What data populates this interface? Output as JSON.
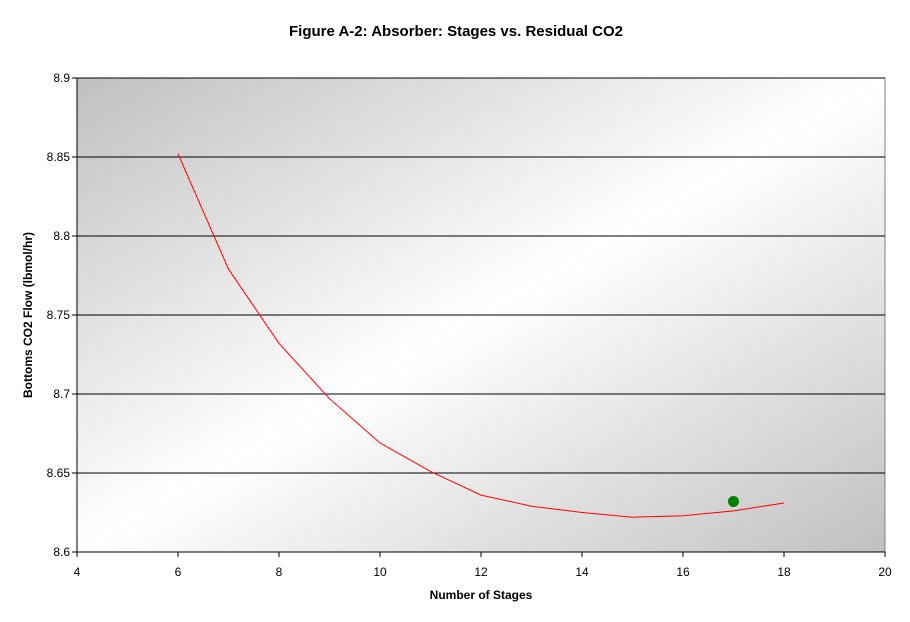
{
  "chart_data": {
    "type": "line",
    "title": "Figure A-2: Absorber: Stages vs. Residual CO2",
    "xlabel": "Number of Stages",
    "ylabel": "Bottoms CO2 Flow (lbmol/hr)",
    "xlim": [
      4,
      20
    ],
    "ylim": [
      8.6,
      8.9
    ],
    "xticks": [
      "4",
      "6",
      "8",
      "10",
      "12",
      "14",
      "16",
      "18",
      "20"
    ],
    "yticks": [
      "8.6",
      "8.65",
      "8.7",
      "8.75",
      "8.8",
      "8.85",
      "8.9"
    ],
    "grid": "horizontal",
    "legend": "none",
    "background": "gradient-gray",
    "series": [
      {
        "style": "line",
        "color": "#ff0000",
        "x": [
          6,
          7,
          8,
          9,
          10,
          11,
          12,
          13,
          14,
          15,
          16,
          17,
          18
        ],
        "y": [
          8.852,
          8.779,
          8.732,
          8.697,
          8.669,
          8.651,
          8.636,
          8.629,
          8.625,
          8.622,
          8.623,
          8.626,
          8.631
        ]
      },
      {
        "style": "marker",
        "color": "#008000",
        "x": [
          17
        ],
        "y": [
          8.632
        ]
      }
    ]
  }
}
